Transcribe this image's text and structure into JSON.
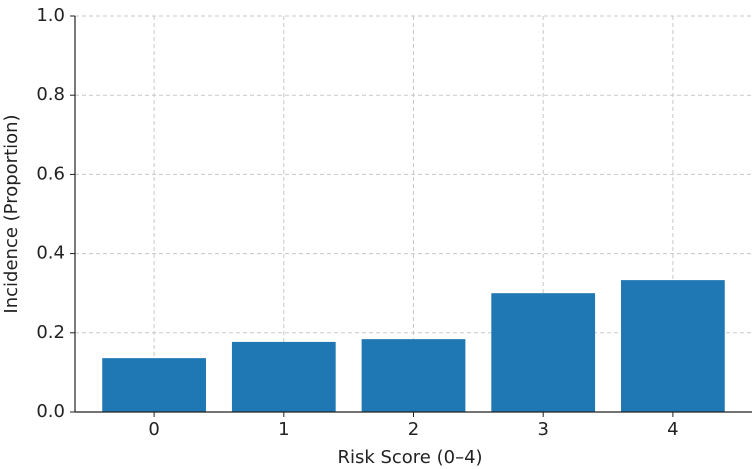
{
  "chart_data": {
    "type": "bar",
    "x_label": "Risk Score (0–4)",
    "y_label": "Incidence (Proportion)",
    "categories": [
      "0",
      "1",
      "2",
      "3",
      "4"
    ],
    "values": [
      0.136,
      0.177,
      0.184,
      0.3,
      0.333
    ],
    "color": "#1f77b4",
    "ylim": [
      0,
      1
    ],
    "yticks": [
      {
        "value": 0,
        "label": "0.0"
      },
      0.2,
      0.4,
      0.6,
      0.8,
      {
        "value": 1,
        "label": "1.0"
      }
    ],
    "grid": true
  }
}
